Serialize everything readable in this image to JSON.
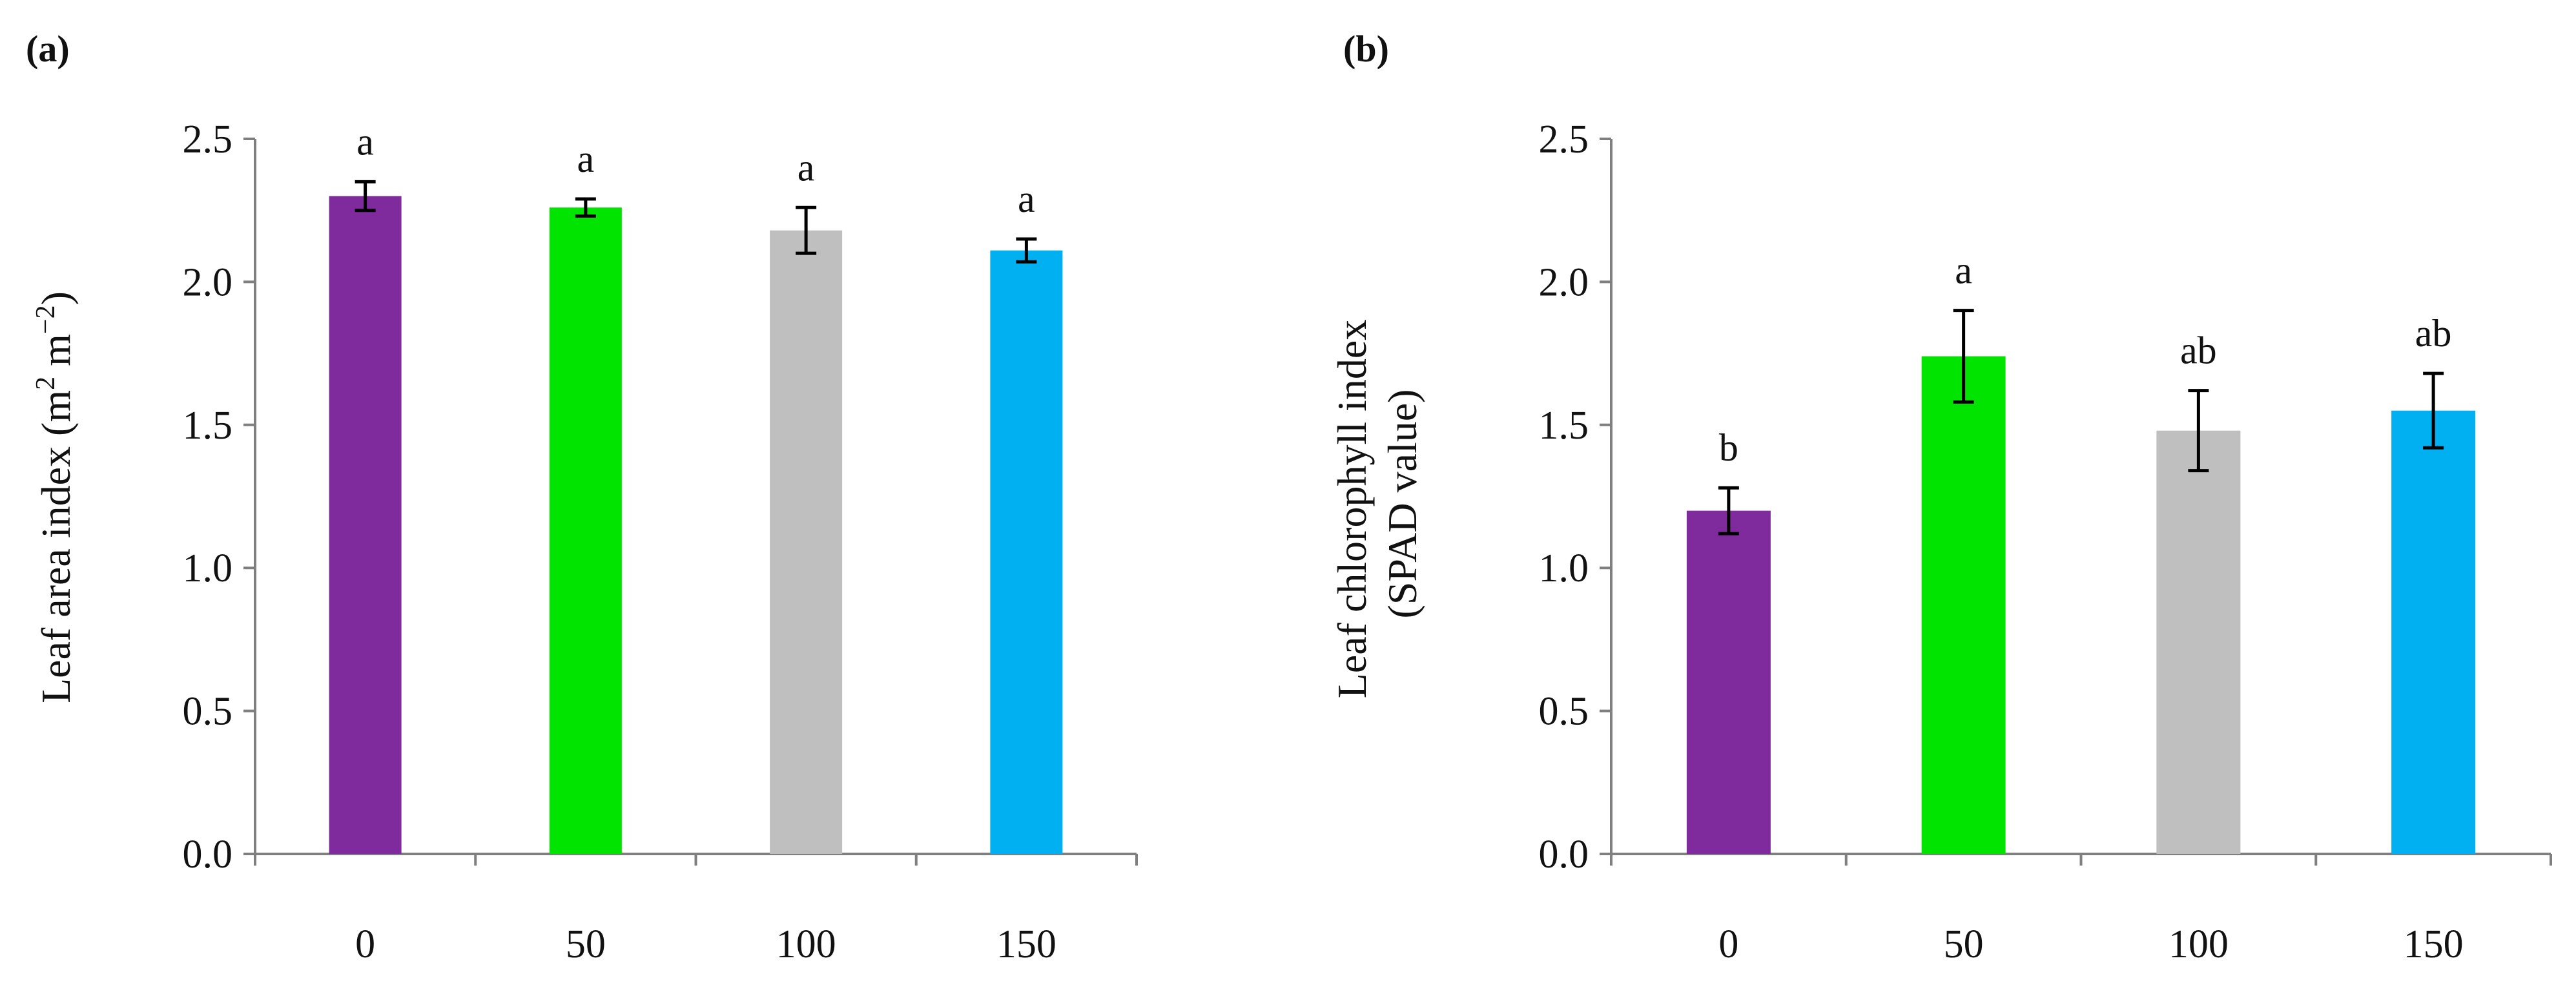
{
  "chart_data": [
    {
      "type": "bar",
      "panel_label": "(a)",
      "categories": [
        "0",
        "50",
        "100",
        "150"
      ],
      "values": [
        2.3,
        2.26,
        2.18,
        2.11
      ],
      "errors": [
        0.05,
        0.03,
        0.08,
        0.04
      ],
      "significance": [
        "a",
        "a",
        "a",
        "a"
      ],
      "colors": [
        "#7f2b9e",
        "#00e400",
        "#bfbfbf",
        "#00b0f0"
      ],
      "ylabel_parts": [
        "Leaf area index (m",
        "2",
        " m",
        "−2",
        ")"
      ],
      "xlabel": "",
      "ylim": [
        0,
        2.5
      ],
      "yticks": [
        "0.0",
        "0.5",
        "1.0",
        "1.5",
        "2.0",
        "2.5"
      ],
      "grid": false
    },
    {
      "type": "bar",
      "panel_label": "(b)",
      "categories": [
        "0",
        "50",
        "100",
        "150"
      ],
      "values": [
        1.2,
        1.74,
        1.48,
        1.55
      ],
      "errors": [
        0.08,
        0.16,
        0.14,
        0.13
      ],
      "significance": [
        "b",
        "a",
        "ab",
        "ab"
      ],
      "colors": [
        "#7f2b9e",
        "#00e400",
        "#bfbfbf",
        "#00b0f0"
      ],
      "ylabel_lines": [
        "Leaf chlorophyll index",
        "(SPAD value)"
      ],
      "xlabel": "",
      "ylim": [
        0,
        2.5
      ],
      "yticks": [
        "0.0",
        "0.5",
        "1.0",
        "1.5",
        "2.0",
        "2.5"
      ],
      "grid": false
    }
  ]
}
